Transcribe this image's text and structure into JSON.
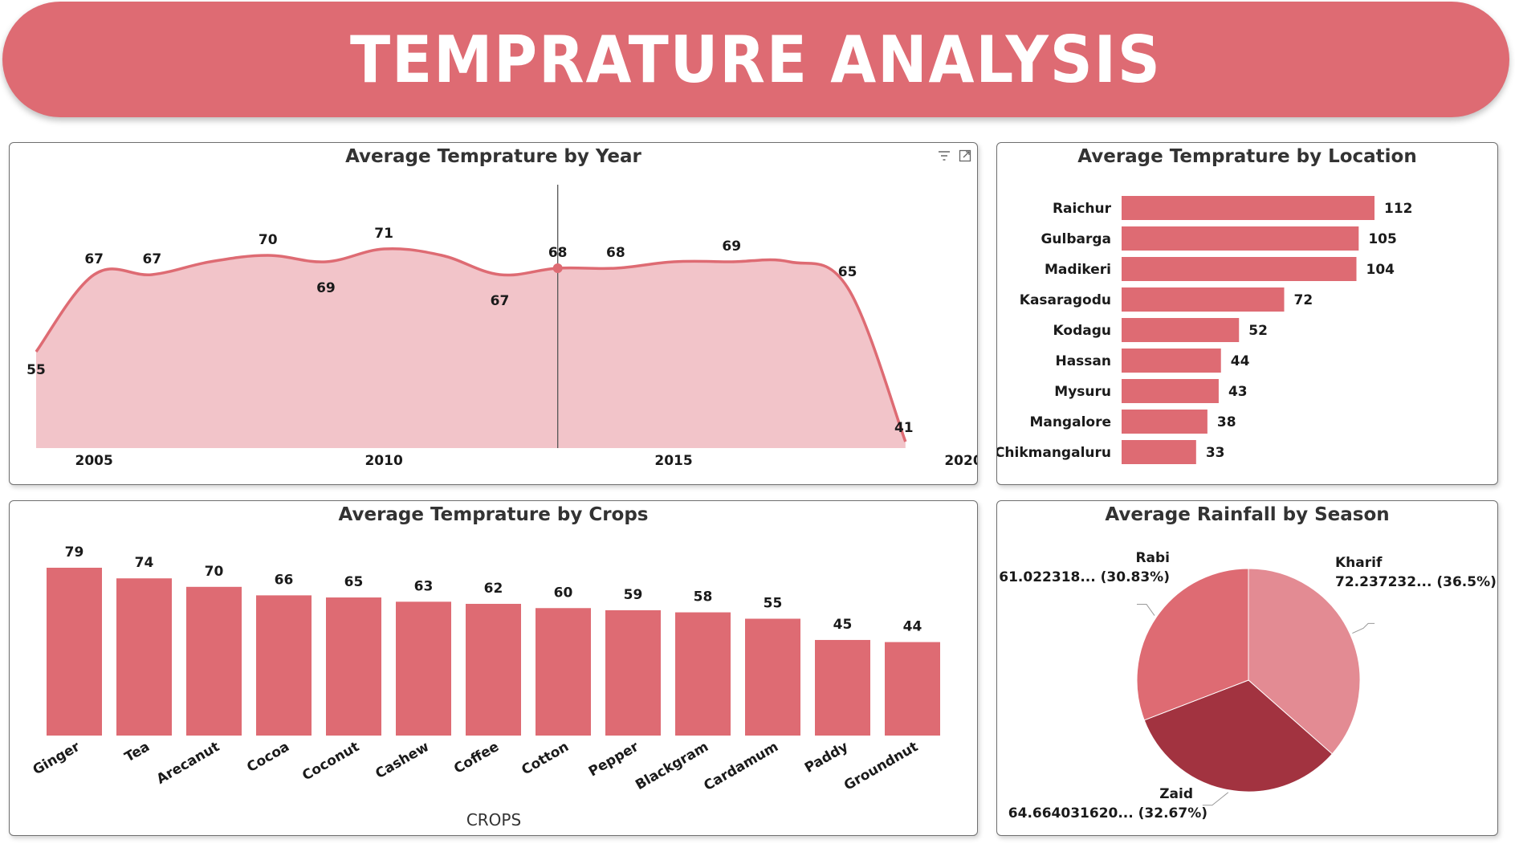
{
  "header": {
    "title": "TEMPRATURE ANALYSIS"
  },
  "colors": {
    "banner": "#de6b73",
    "bar": "#de6b73",
    "area_fill": "#f2c4c9",
    "area_line": "#de6b73",
    "pie": [
      "#e38b93",
      "#a23340",
      "#de6b73"
    ]
  },
  "icons": {
    "filter": "filter-icon",
    "focus": "focus-mode-icon"
  },
  "chart_data": [
    {
      "type": "area",
      "title": "Average Temprature by Year",
      "x": [
        2004,
        2005,
        2006,
        2007,
        2008,
        2009,
        2010,
        2011,
        2012,
        2013,
        2014,
        2015,
        2016,
        2017,
        2018,
        2019
      ],
      "y": [
        55,
        67,
        67,
        69,
        70,
        69,
        71,
        70,
        67,
        68,
        68,
        69,
        69,
        69,
        65,
        41
      ],
      "data_labels": [
        {
          "x": 2004,
          "label": "55"
        },
        {
          "x": 2005,
          "label": "67"
        },
        {
          "x": 2006,
          "label": "67"
        },
        {
          "x": 2008,
          "label": "70"
        },
        {
          "x": 2009,
          "label": "69"
        },
        {
          "x": 2010,
          "label": "71"
        },
        {
          "x": 2012,
          "label": "67"
        },
        {
          "x": 2013,
          "label": "68"
        },
        {
          "x": 2014,
          "label": "68"
        },
        {
          "x": 2016,
          "label": "69"
        },
        {
          "x": 2018,
          "label": "65"
        },
        {
          "x": 2019,
          "label": "41"
        }
      ],
      "xticks": [
        "2005",
        "2010",
        "2015",
        "2020"
      ],
      "highlight_x": 2013,
      "xlim": [
        2004,
        2020
      ],
      "ylim": [
        40,
        75
      ]
    },
    {
      "type": "bar",
      "orientation": "horizontal",
      "title": "Average Temprature by Location",
      "categories": [
        "Raichur",
        "Gulbarga",
        "Madikeri",
        "Kasaragodu",
        "Kodagu",
        "Hassan",
        "Mysuru",
        "Mangalore",
        "Chikmangaluru"
      ],
      "values": [
        112,
        105,
        104,
        72,
        52,
        44,
        43,
        38,
        33
      ],
      "xlim": [
        0,
        112
      ]
    },
    {
      "type": "bar",
      "title": "Average Temprature by Crops",
      "xlabel": "CROPS",
      "categories": [
        "Ginger",
        "Tea",
        "Arecanut",
        "Cocoa",
        "Coconut",
        "Cashew",
        "Coffee",
        "Cotton",
        "Pepper",
        "Blackgram",
        "Cardamum",
        "Paddy",
        "Groundnut"
      ],
      "values": [
        79,
        74,
        70,
        66,
        65,
        63,
        62,
        60,
        59,
        58,
        55,
        45,
        44
      ],
      "ylim": [
        0,
        79
      ]
    },
    {
      "type": "pie",
      "title": "Average Rainfall by Season",
      "slices": [
        {
          "name": "Kharif",
          "value_label": "72.237232... (36.5%)",
          "percent": 36.5
        },
        {
          "name": "Zaid",
          "value_label": "64.664031620... (32.67%)",
          "percent": 32.67
        },
        {
          "name": "Rabi",
          "value_label": "61.022318... (30.83%)",
          "percent": 30.83
        }
      ]
    }
  ]
}
